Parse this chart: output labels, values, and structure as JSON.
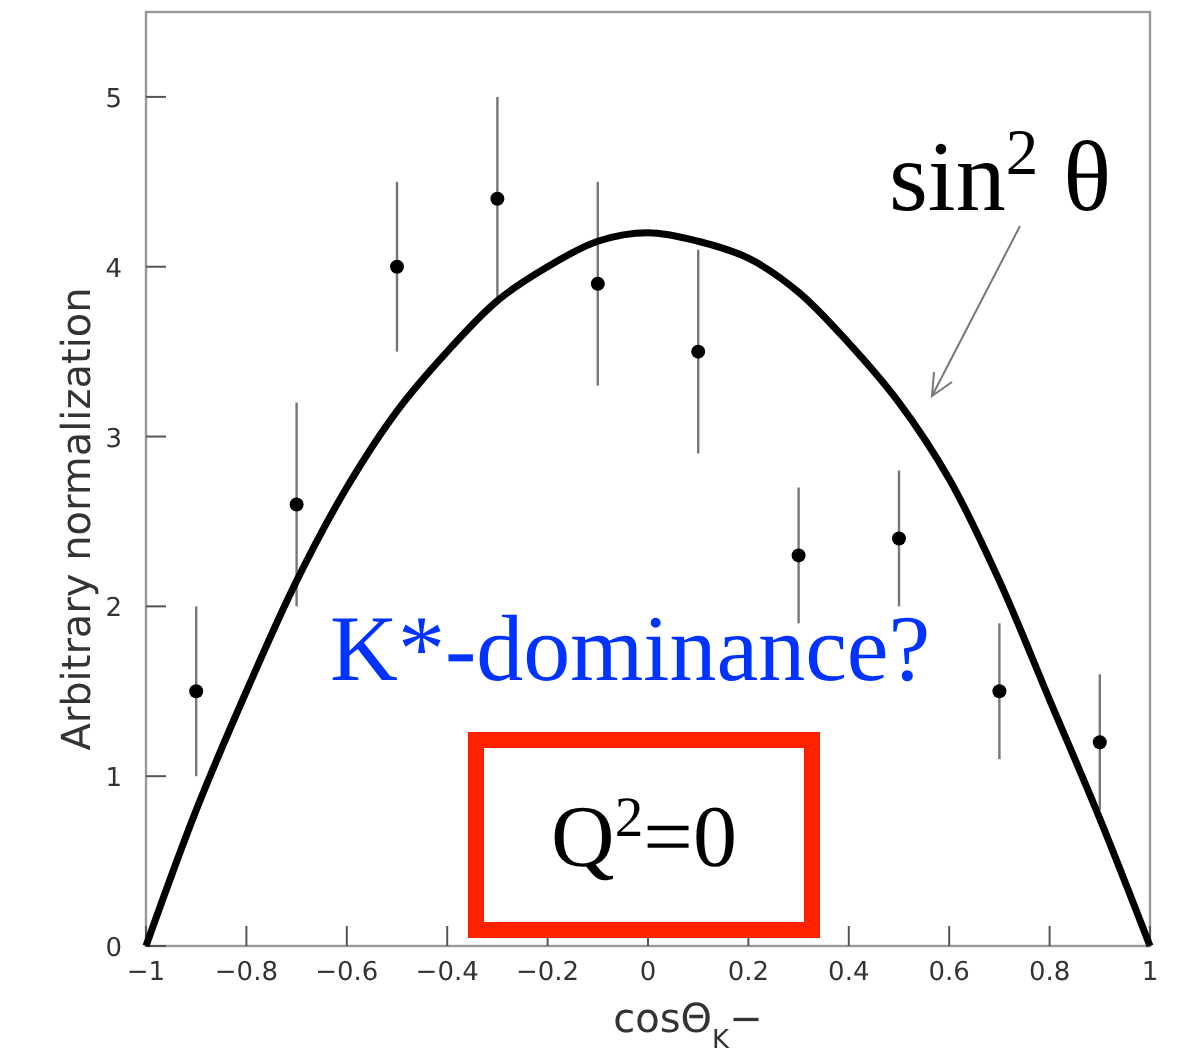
{
  "chart_data": {
    "type": "scatter",
    "xlabel": "cosΘ$_{K}$−",
    "ylabel": "Arbitrary normalization",
    "xlim": [
      -1,
      1
    ],
    "ylim": [
      0,
      5.5
    ],
    "xticks": [
      -1,
      -0.8,
      -0.6,
      -0.4,
      -0.2,
      0,
      0.2,
      0.4,
      0.6,
      0.8,
      1
    ],
    "yticks": [
      0,
      1,
      2,
      3,
      4,
      5
    ],
    "grid": false,
    "series": [
      {
        "marker": "circle",
        "color": "#000000",
        "x": [
          -0.9,
          -0.7,
          -0.5,
          -0.3,
          -0.1,
          0.1,
          0.3,
          0.5,
          0.7,
          0.9
        ],
        "values": [
          1.5,
          2.6,
          4.0,
          4.4,
          3.9,
          3.5,
          2.3,
          2.4,
          1.5,
          1.2
        ],
        "errors": [
          [
            1.0,
            2.0
          ],
          [
            2.0,
            3.2
          ],
          [
            3.5,
            4.5
          ],
          [
            3.8,
            5.0
          ],
          [
            3.3,
            4.5
          ],
          [
            2.9,
            4.1
          ],
          [
            1.9,
            2.7
          ],
          [
            2.0,
            2.8
          ],
          [
            1.1,
            1.9
          ],
          [
            0.8,
            1.6
          ]
        ]
      },
      {
        "type": "line",
        "color": "#000000",
        "line_style": "solid",
        "x": [
          -1,
          -0.9,
          -0.8,
          -0.7,
          -0.6,
          -0.5,
          -0.4,
          -0.3,
          -0.2,
          -0.1,
          0,
          0.1,
          0.2,
          0.3,
          0.4,
          0.5,
          0.6,
          0.7,
          0.8,
          0.9,
          1
        ],
        "values": [
          0,
          0.8,
          1.5,
          2.15,
          2.7,
          3.15,
          3.5,
          3.8,
          4.0,
          4.15,
          4.2,
          4.15,
          4.05,
          3.85,
          3.55,
          3.2,
          2.75,
          2.15,
          1.45,
          0.75,
          0
        ]
      }
    ],
    "annotations": [
      "sin$^{2}$ θ",
      "K*-dominance?",
      "Q$^{2}$=0"
    ]
  }
}
